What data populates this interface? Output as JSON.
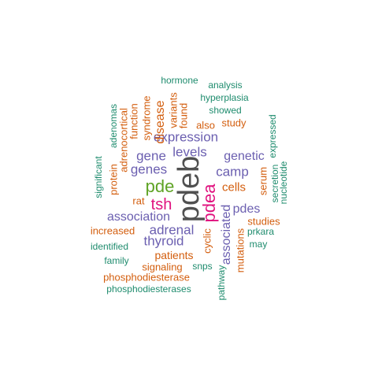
{
  "palette": {
    "gray": "#505050",
    "purple": "#6b5fb0",
    "magenta": "#e0117e",
    "green": "#5ea324",
    "orange": "#d35e0e",
    "teal": "#1f8c6e"
  },
  "words": [
    {
      "text": "pdeb",
      "color": "gray",
      "weight": 10
    },
    {
      "text": "pdea",
      "color": "magenta",
      "weight": 7
    },
    {
      "text": "pde",
      "color": "green",
      "weight": 7
    },
    {
      "text": "tsh",
      "color": "magenta",
      "weight": 6
    },
    {
      "text": "expression",
      "color": "purple",
      "weight": 5
    },
    {
      "text": "levels",
      "color": "purple",
      "weight": 5
    },
    {
      "text": "gene",
      "color": "purple",
      "weight": 5
    },
    {
      "text": "genes",
      "color": "purple",
      "weight": 5
    },
    {
      "text": "camp",
      "color": "purple",
      "weight": 5
    },
    {
      "text": "genetic",
      "color": "purple",
      "weight": 5
    },
    {
      "text": "adrenal",
      "color": "purple",
      "weight": 5
    },
    {
      "text": "thyroid",
      "color": "purple",
      "weight": 5
    },
    {
      "text": "association",
      "color": "purple",
      "weight": 5
    },
    {
      "text": "pdes",
      "color": "purple",
      "weight": 5
    },
    {
      "text": "associated",
      "color": "purple",
      "weight": 5
    },
    {
      "text": "disease",
      "color": "orange",
      "weight": 4
    },
    {
      "text": "syndrome",
      "color": "orange",
      "weight": 3
    },
    {
      "text": "variants",
      "color": "orange",
      "weight": 3
    },
    {
      "text": "found",
      "color": "orange",
      "weight": 3
    },
    {
      "text": "also",
      "color": "orange",
      "weight": 3
    },
    {
      "text": "study",
      "color": "orange",
      "weight": 3
    },
    {
      "text": "cells",
      "color": "orange",
      "weight": 4
    },
    {
      "text": "serum",
      "color": "orange",
      "weight": 3
    },
    {
      "text": "rat",
      "color": "orange",
      "weight": 3
    },
    {
      "text": "increased",
      "color": "orange",
      "weight": 3
    },
    {
      "text": "patients",
      "color": "orange",
      "weight": 4
    },
    {
      "text": "signaling",
      "color": "orange",
      "weight": 3
    },
    {
      "text": "phosphodiesterase",
      "color": "orange",
      "weight": 3
    },
    {
      "text": "cyclic",
      "color": "orange",
      "weight": 3
    },
    {
      "text": "mutations",
      "color": "orange",
      "weight": 3
    },
    {
      "text": "studies",
      "color": "orange",
      "weight": 3
    },
    {
      "text": "function",
      "color": "orange",
      "weight": 3
    },
    {
      "text": "adrenocortical",
      "color": "orange",
      "weight": 3
    },
    {
      "text": "protein",
      "color": "orange",
      "weight": 3
    },
    {
      "text": "hormone",
      "color": "teal",
      "weight": 2
    },
    {
      "text": "analysis",
      "color": "teal",
      "weight": 2
    },
    {
      "text": "hyperplasia",
      "color": "teal",
      "weight": 2
    },
    {
      "text": "showed",
      "color": "teal",
      "weight": 2
    },
    {
      "text": "expressed",
      "color": "teal",
      "weight": 2
    },
    {
      "text": "secretion",
      "color": "teal",
      "weight": 2
    },
    {
      "text": "nucleotide",
      "color": "teal",
      "weight": 2
    },
    {
      "text": "prkara",
      "color": "teal",
      "weight": 2
    },
    {
      "text": "may",
      "color": "teal",
      "weight": 2
    },
    {
      "text": "snps",
      "color": "teal",
      "weight": 2
    },
    {
      "text": "pathway",
      "color": "teal",
      "weight": 2
    },
    {
      "text": "phosphodiesterases",
      "color": "teal",
      "weight": 2
    },
    {
      "text": "family",
      "color": "teal",
      "weight": 2
    },
    {
      "text": "identified",
      "color": "teal",
      "weight": 2
    },
    {
      "text": "significant",
      "color": "teal",
      "weight": 2
    },
    {
      "text": "adenomas",
      "color": "teal",
      "weight": 2
    }
  ]
}
